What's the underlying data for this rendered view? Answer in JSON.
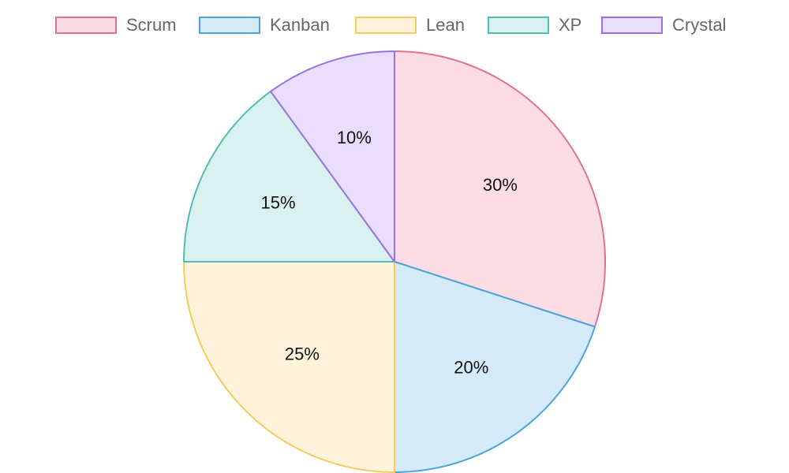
{
  "chart_data": {
    "type": "pie",
    "title": "",
    "legend_position": "top",
    "slices": [
      {
        "name": "Scrum",
        "value": 30,
        "label": "30%",
        "fill": "#fdddE5",
        "stroke": "#e0728f"
      },
      {
        "name": "Kanban",
        "value": 20,
        "label": "20%",
        "fill": "#d5eaf8",
        "stroke": "#4aa3d9"
      },
      {
        "name": "Lean",
        "value": 25,
        "label": "25%",
        "fill": "#fff3dc",
        "stroke": "#f2cd5c"
      },
      {
        "name": "XP",
        "value": 15,
        "label": "15%",
        "fill": "#d8f1ef",
        "stroke": "#55bcb5"
      },
      {
        "name": "Crystal",
        "value": 10,
        "label": "10%",
        "fill": "#e8ddfc",
        "stroke": "#9a72e2"
      }
    ]
  }
}
